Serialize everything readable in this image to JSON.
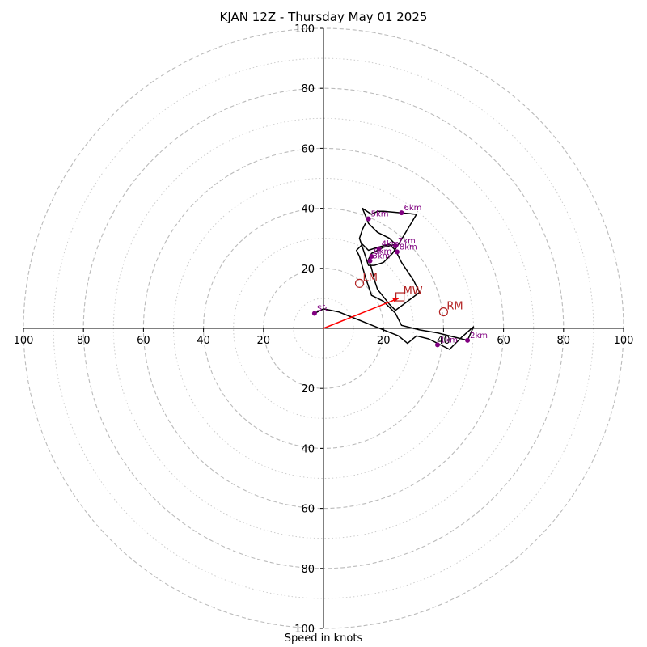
{
  "chart_data": {
    "type": "hodograph",
    "title": "KJAN 12Z - Thursday May 01 2025",
    "xlabel": "Speed in knots",
    "range": [
      -100,
      100
    ],
    "major_rings": [
      20,
      40,
      60,
      80,
      100
    ],
    "minor_rings": [
      10,
      30,
      50,
      70,
      90
    ],
    "tick_labels": [
      "100",
      "80",
      "60",
      "40",
      "20",
      "20",
      "40",
      "60",
      "80",
      "100"
    ],
    "tick_values": [
      -100,
      -80,
      -60,
      -40,
      -20,
      20,
      40,
      60,
      80,
      100
    ],
    "colors": {
      "trace": "#000000",
      "height_marker": "#800080",
      "motion": "#b22222",
      "vector": "#ff0000",
      "rings": "#bbbbbb"
    },
    "trace": [
      [
        -3,
        5
      ],
      [
        0,
        6.5
      ],
      [
        5,
        5.5
      ],
      [
        10,
        3.5
      ],
      [
        15,
        1.5
      ],
      [
        20,
        -0.5
      ],
      [
        25,
        -2.5
      ],
      [
        28,
        -5
      ],
      [
        31,
        -2.5
      ],
      [
        35,
        -3.5
      ],
      [
        38,
        -5
      ],
      [
        42,
        -7
      ],
      [
        46,
        -3
      ],
      [
        50,
        0.5
      ],
      [
        48,
        -4
      ],
      [
        44,
        -3
      ],
      [
        38,
        -1.5
      ],
      [
        32,
        -0.5
      ],
      [
        26,
        1
      ],
      [
        24,
        5
      ],
      [
        20,
        9
      ],
      [
        16,
        11
      ],
      [
        14,
        17
      ],
      [
        12,
        24
      ],
      [
        11,
        26
      ],
      [
        13,
        28
      ],
      [
        15,
        26
      ],
      [
        18,
        27
      ],
      [
        22,
        28
      ],
      [
        24,
        26
      ],
      [
        26,
        22
      ],
      [
        30,
        16
      ],
      [
        32,
        12
      ],
      [
        28,
        9
      ],
      [
        24,
        6
      ],
      [
        22,
        8
      ],
      [
        18,
        13
      ],
      [
        17,
        16
      ],
      [
        16,
        20
      ],
      [
        15,
        23
      ],
      [
        16,
        25
      ],
      [
        18,
        26
      ],
      [
        20,
        27
      ],
      [
        24,
        28
      ],
      [
        22,
        30
      ],
      [
        18,
        32
      ],
      [
        15,
        35
      ],
      [
        13,
        40
      ],
      [
        16,
        38
      ],
      [
        18,
        39
      ],
      [
        20,
        39
      ],
      [
        26,
        38.5
      ],
      [
        31,
        38
      ],
      [
        28,
        33
      ],
      [
        25,
        28
      ],
      [
        23,
        25
      ],
      [
        20,
        22
      ],
      [
        17,
        21
      ],
      [
        15,
        21
      ],
      [
        14,
        24
      ],
      [
        13,
        27
      ],
      [
        12,
        30
      ],
      [
        13,
        33
      ],
      [
        14,
        35
      ]
    ],
    "height_markers": [
      {
        "label": "Sfc",
        "x": -3,
        "y": 5
      },
      {
        "label": "1km",
        "x": 38,
        "y": -5.5
      },
      {
        "label": "2km",
        "x": 48,
        "y": -4
      },
      {
        "label": "3km",
        "x": 15.5,
        "y": 22.5
      },
      {
        "label": "4km",
        "x": 18.5,
        "y": 26.5
      },
      {
        "label": "5km",
        "x": 15,
        "y": 36.5
      },
      {
        "label": "6km",
        "x": 26,
        "y": 38.5
      },
      {
        "label": "7km",
        "x": 24,
        "y": 27.5
      },
      {
        "label": "8km",
        "x": 24.5,
        "y": 25.5
      },
      {
        "label": "9km",
        "x": 16,
        "y": 24
      }
    ],
    "storm_motions": [
      {
        "label": "LM",
        "x": 12,
        "y": 15
      },
      {
        "label": "RM",
        "x": 40,
        "y": 5.5
      },
      {
        "label": "MW",
        "x": 25.5,
        "y": 10.5
      }
    ],
    "bunkers_vector": {
      "from": [
        0,
        0
      ],
      "to": [
        25,
        10
      ]
    }
  }
}
